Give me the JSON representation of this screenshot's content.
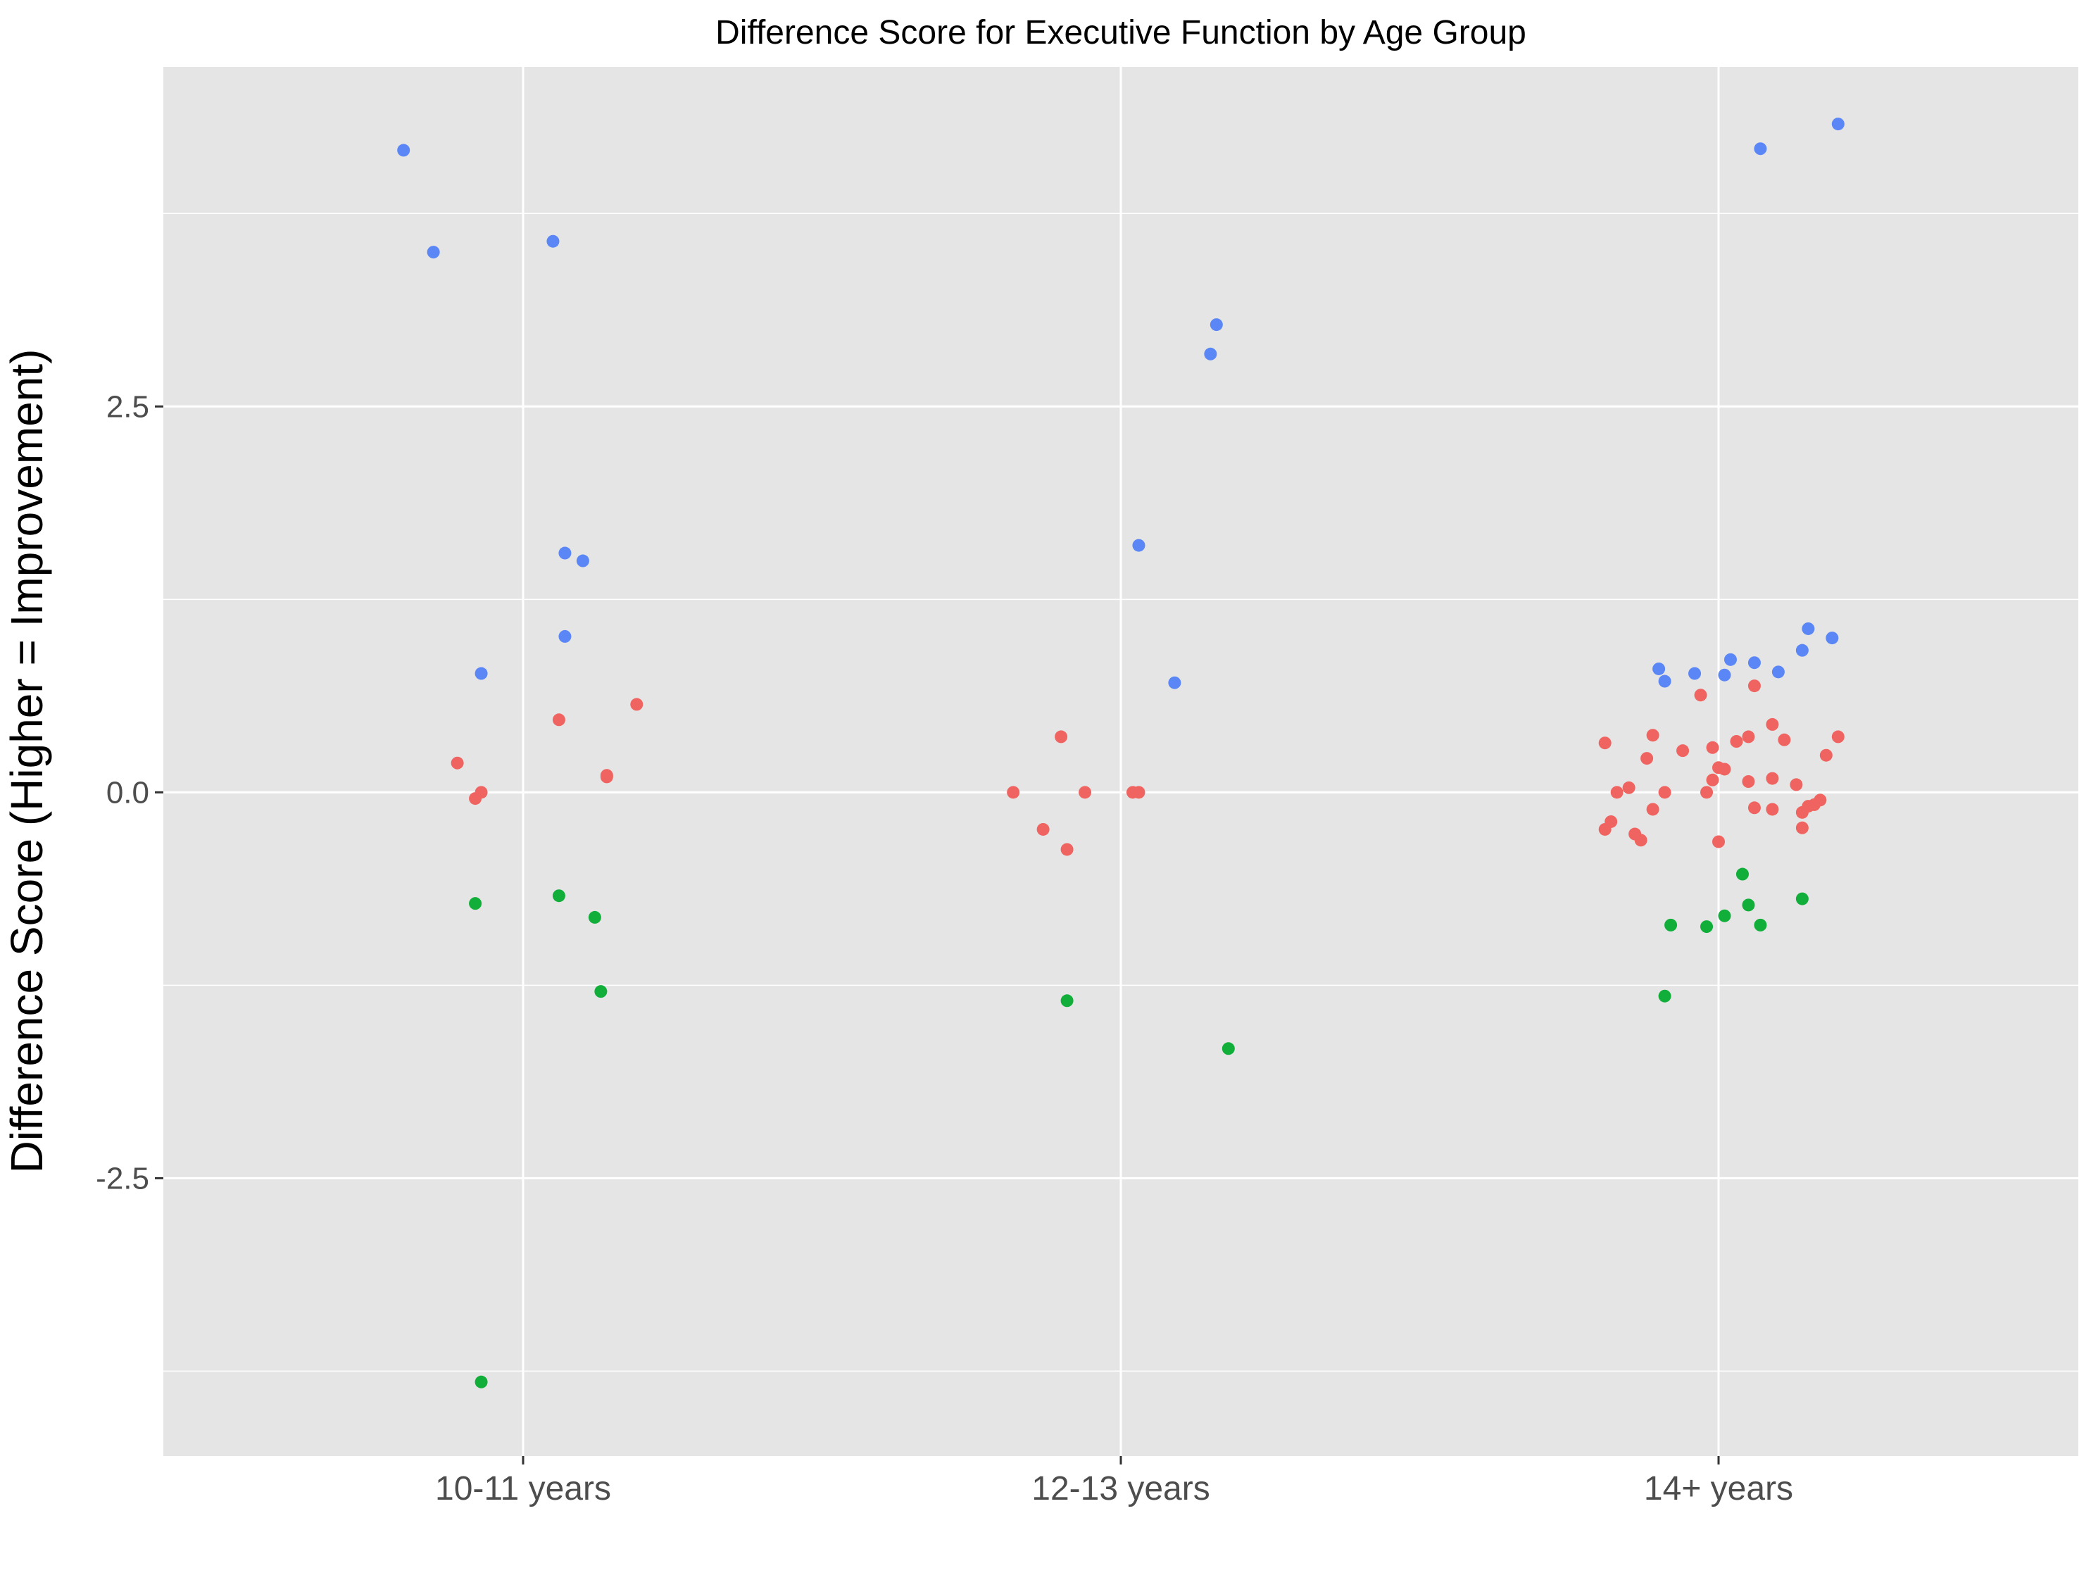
{
  "chart_data": {
    "type": "scatter",
    "title": "Difference Score for Executive Function by Age Group",
    "xlabel": "",
    "ylabel": "Difference Score (Higher = Improvement)",
    "categories": [
      "10-11 years",
      "12-13 years",
      "14+ years"
    ],
    "ylim": [
      -4.3,
      4.7
    ],
    "y_ticks": [
      -2.5,
      0,
      2.5
    ],
    "y_tick_labels": [
      "-2.5",
      "0.0",
      "2.5"
    ],
    "grid": true,
    "legend": "none",
    "background": "#E5E5E5",
    "colors": {
      "blue": "#5A86F6",
      "red": "#EF6460",
      "green": "#12AE3A"
    },
    "series": [
      {
        "color": "blue",
        "points": [
          {
            "x": -0.2,
            "y": 4.16
          },
          {
            "x": -0.15,
            "y": 3.5
          },
          {
            "x": -0.07,
            "y": 0.77
          },
          {
            "x": 0.05,
            "y": 3.57
          },
          {
            "x": 0.07,
            "y": 1.01
          },
          {
            "x": 0.07,
            "y": 1.55
          },
          {
            "x": 0.1,
            "y": 1.5
          },
          {
            "x": 1.03,
            "y": 1.6
          },
          {
            "x": 1.09,
            "y": 0.71
          },
          {
            "x": 1.15,
            "y": 2.84
          },
          {
            "x": 1.16,
            "y": 3.03
          },
          {
            "x": 1.9,
            "y": 0.8
          },
          {
            "x": 1.91,
            "y": 0.72
          },
          {
            "x": 1.96,
            "y": 0.77
          },
          {
            "x": 2.01,
            "y": 0.76
          },
          {
            "x": 2.02,
            "y": 0.86
          },
          {
            "x": 2.06,
            "y": 0.84
          },
          {
            "x": 2.07,
            "y": 4.17
          },
          {
            "x": 2.1,
            "y": 0.78
          },
          {
            "x": 2.14,
            "y": 0.92
          },
          {
            "x": 2.15,
            "y": 1.06
          },
          {
            "x": 2.19,
            "y": 1.0
          },
          {
            "x": 2.2,
            "y": 4.33
          }
        ]
      },
      {
        "color": "red",
        "points": [
          {
            "x": -0.11,
            "y": 0.19
          },
          {
            "x": -0.08,
            "y": -0.04
          },
          {
            "x": -0.07,
            "y": 0.0
          },
          {
            "x": 0.06,
            "y": 0.47
          },
          {
            "x": 0.14,
            "y": 0.1
          },
          {
            "x": 0.14,
            "y": 0.11
          },
          {
            "x": 0.19,
            "y": 0.57
          },
          {
            "x": 0.82,
            "y": 0.0
          },
          {
            "x": 0.87,
            "y": -0.24
          },
          {
            "x": 0.9,
            "y": 0.36
          },
          {
            "x": 0.91,
            "y": -0.37
          },
          {
            "x": 0.94,
            "y": 0.0
          },
          {
            "x": 1.02,
            "y": 0.0
          },
          {
            "x": 1.03,
            "y": 0.0
          },
          {
            "x": 1.81,
            "y": -0.24
          },
          {
            "x": 1.81,
            "y": 0.32
          },
          {
            "x": 1.82,
            "y": -0.19
          },
          {
            "x": 1.83,
            "y": 0.0
          },
          {
            "x": 1.85,
            "y": 0.03
          },
          {
            "x": 1.86,
            "y": -0.27
          },
          {
            "x": 1.87,
            "y": -0.31
          },
          {
            "x": 1.88,
            "y": 0.22
          },
          {
            "x": 1.89,
            "y": -0.11
          },
          {
            "x": 1.89,
            "y": 0.37
          },
          {
            "x": 1.91,
            "y": 0.0
          },
          {
            "x": 1.94,
            "y": 0.27
          },
          {
            "x": 1.98,
            "y": 0.0
          },
          {
            "x": 1.97,
            "y": 0.63
          },
          {
            "x": 1.99,
            "y": 0.08
          },
          {
            "x": 1.99,
            "y": 0.29
          },
          {
            "x": 2.0,
            "y": 0.16
          },
          {
            "x": 2.0,
            "y": -0.32
          },
          {
            "x": 2.01,
            "y": 0.15
          },
          {
            "x": 2.03,
            "y": 0.33
          },
          {
            "x": 2.05,
            "y": 0.07
          },
          {
            "x": 2.05,
            "y": 0.36
          },
          {
            "x": 2.06,
            "y": -0.1
          },
          {
            "x": 2.06,
            "y": 0.69
          },
          {
            "x": 2.09,
            "y": 0.09
          },
          {
            "x": 2.09,
            "y": 0.44
          },
          {
            "x": 2.09,
            "y": -0.11
          },
          {
            "x": 2.11,
            "y": 0.34
          },
          {
            "x": 2.13,
            "y": 0.05
          },
          {
            "x": 2.14,
            "y": -0.13
          },
          {
            "x": 2.14,
            "y": -0.23
          },
          {
            "x": 2.15,
            "y": -0.09
          },
          {
            "x": 2.16,
            "y": -0.08
          },
          {
            "x": 2.17,
            "y": -0.05
          },
          {
            "x": 2.18,
            "y": 0.24
          },
          {
            "x": 2.2,
            "y": 0.36
          }
        ]
      },
      {
        "color": "green",
        "points": [
          {
            "x": -0.08,
            "y": -0.72
          },
          {
            "x": -0.07,
            "y": -3.82
          },
          {
            "x": 0.06,
            "y": -0.67
          },
          {
            "x": 0.12,
            "y": -0.81
          },
          {
            "x": 0.13,
            "y": -1.29
          },
          {
            "x": 0.91,
            "y": -1.35
          },
          {
            "x": 1.18,
            "y": -1.66
          },
          {
            "x": 1.91,
            "y": -1.32
          },
          {
            "x": 1.92,
            "y": -0.86
          },
          {
            "x": 1.98,
            "y": -0.87
          },
          {
            "x": 2.01,
            "y": -0.8
          },
          {
            "x": 2.04,
            "y": -0.53
          },
          {
            "x": 2.05,
            "y": -0.73
          },
          {
            "x": 2.07,
            "y": -0.86
          },
          {
            "x": 2.14,
            "y": -0.69
          }
        ]
      }
    ]
  }
}
